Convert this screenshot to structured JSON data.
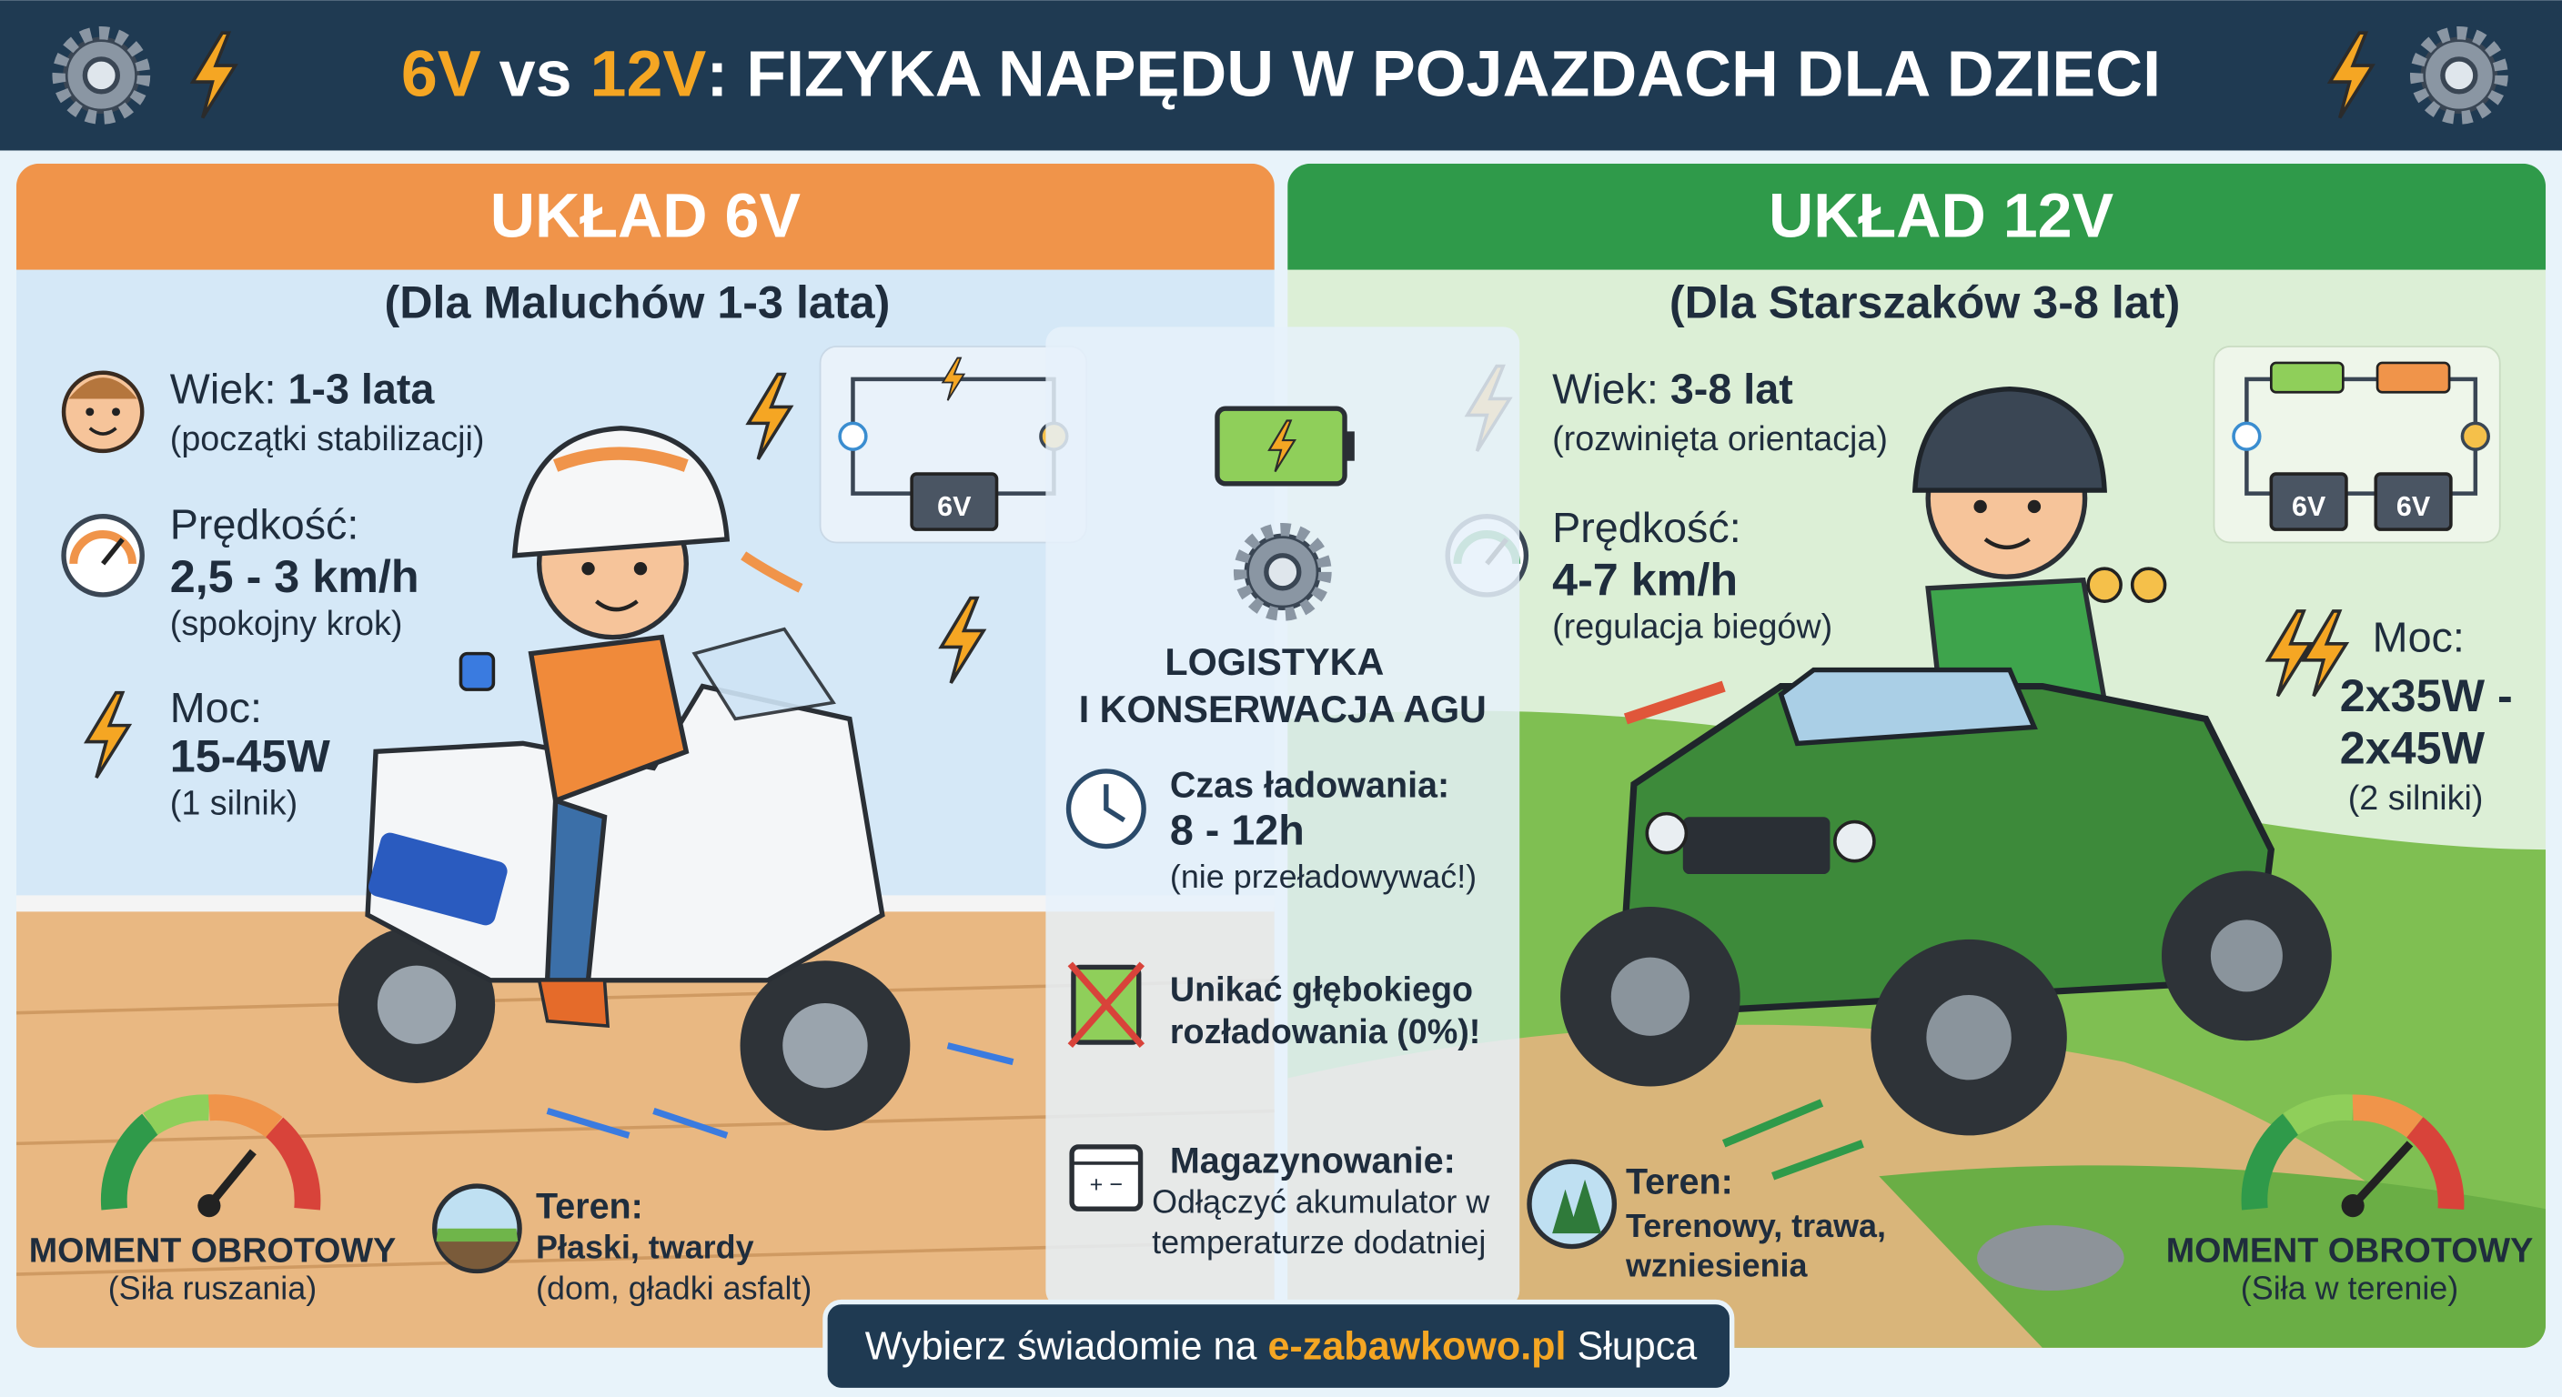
{
  "header": {
    "title_parts": [
      "6V",
      " vs ",
      "12V",
      ": FIZYKA NAPĘDU W POJAZDACH DLA DZIECI"
    ]
  },
  "left_panel": {
    "title": "UKŁAD 6V",
    "subtitle": "(Dla Maluchów 1-3 lata)",
    "age_label": "Wiek: ",
    "age_value": "1-3 lata",
    "age_note": "(początki stabilizacji)",
    "speed_label": "Prędkość:",
    "speed_value": "2,5 - 3 km/h",
    "speed_note": "(spokojny krok)",
    "power_label": "Moc:",
    "power_value": "15-45W",
    "power_note": "(1 silnik)",
    "battery_label": "6V",
    "torque_label": "MOMENT OBROTOWY",
    "torque_note": "(Siła ruszania)",
    "terrain_label": "Teren:",
    "terrain_value": "Płaski, twardy",
    "terrain_note": "(dom, gładki asfalt)"
  },
  "center": {
    "title_lines": [
      "LOGISTYKA",
      "I KONSERWACJA AGU"
    ],
    "charging_label": "Czas ładowania:",
    "charging_value": "8 - 12h",
    "charging_note": "(nie przeładowywać!)",
    "discharge_lines": [
      "Unikać głębokiego",
      "rozładowania (0%)!"
    ],
    "storage_label": "Magazynowanie:",
    "storage_lines": [
      "Odłączyć akumulator w",
      "temperaturze dodatniej"
    ]
  },
  "right_panel": {
    "title": "UKŁAD 12V",
    "subtitle": "(Dla Starszaków 3-8 lat)",
    "age_label": "Wiek: ",
    "age_value": "3-8 lat",
    "age_note": "(rozwinięta orientacja)",
    "speed_label": "Prędkość:",
    "speed_value": "4-7 km/h",
    "speed_note": "(regulacja biegów)",
    "power_label": "Moc:",
    "power_lines": [
      "2x35W -",
      "2x45W"
    ],
    "power_note": "(2 silniki)",
    "battery_labels": [
      "6V",
      "6V"
    ],
    "terrain_label": "Teren:",
    "terrain_lines": [
      "Terenowy, trawa,",
      "wzniesienia"
    ],
    "torque_label": "MOMENT OBROTOWY",
    "torque_note": "(Siła w terenie)"
  },
  "footer": {
    "parts": [
      "Wybierz świadomie na ",
      "e-zabawkowo.pl",
      " Słupca"
    ]
  }
}
